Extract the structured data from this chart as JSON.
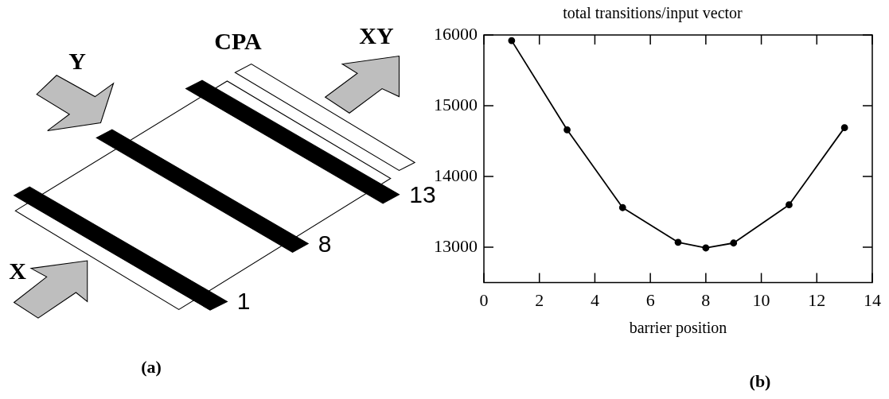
{
  "chart_data": {
    "type": "line",
    "title": "total transitions/input vector",
    "xlabel": "barrier position",
    "x": [
      1,
      3,
      5,
      7,
      8,
      9,
      11,
      13
    ],
    "series": [
      {
        "color": "#000000",
        "values": [
          15920,
          14660,
          13560,
          13070,
          12990,
          13060,
          13600,
          14690
        ]
      }
    ],
    "xlim": [
      0,
      14
    ],
    "xticks": [
      0,
      2,
      4,
      6,
      8,
      10,
      12,
      14
    ],
    "ylim": [
      12500,
      16000
    ],
    "yticks": [
      13000,
      14000,
      15000,
      16000
    ],
    "grid": false,
    "legend": false,
    "marker": "circle",
    "line_style": "solid",
    "annotations": [
      "Y",
      "CPA",
      "XY",
      "X",
      "13",
      "8",
      "1",
      "(a)",
      "(b)"
    ]
  }
}
